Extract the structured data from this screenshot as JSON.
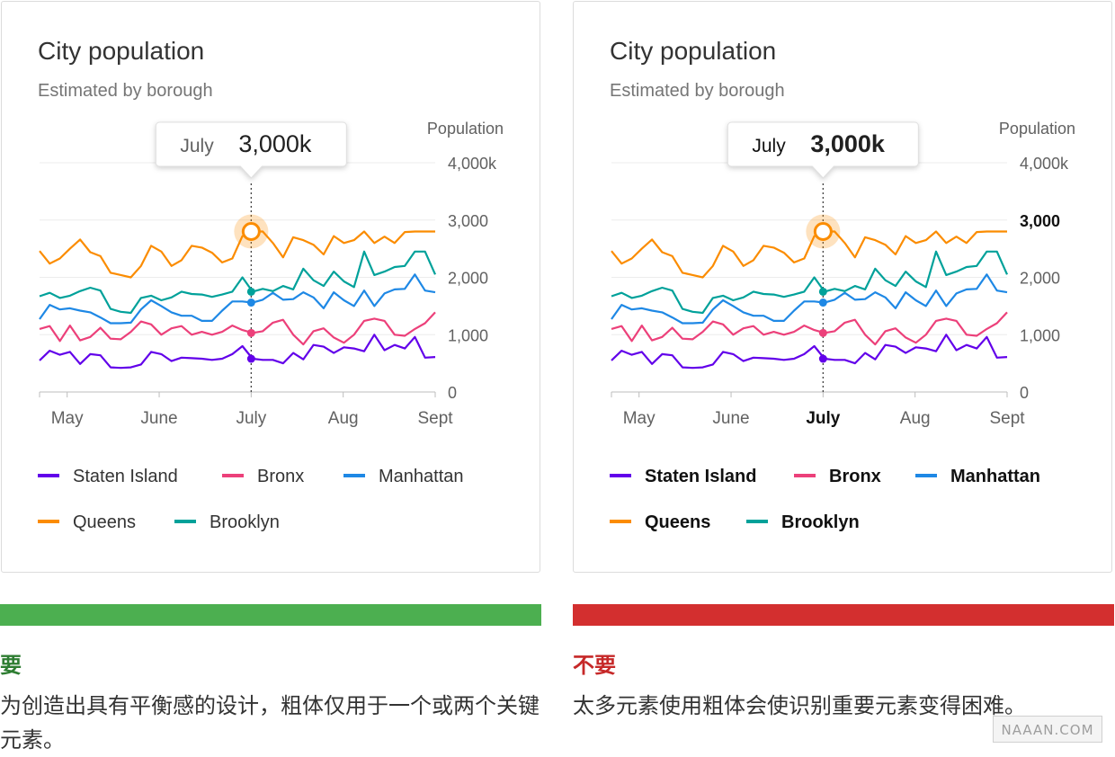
{
  "chart_data": [
    {
      "type": "line",
      "variant": "good",
      "title": "City population",
      "subtitle": "Estimated by borough",
      "ylabel": "Population",
      "ylim": [
        0,
        4000
      ],
      "y_ticks": [
        "4,000k",
        "3,000",
        "2,000",
        "1,000",
        "0"
      ],
      "x_ticks": [
        "May",
        "June",
        "July",
        "Aug",
        "Sept"
      ],
      "x_tick_positions": [
        0,
        1,
        2,
        3,
        4
      ],
      "xlim": [
        -0.3,
        4.0
      ],
      "tooltip": {
        "label": "July",
        "value": "3,000k",
        "at_x": 2.0
      },
      "emphasis": "light",
      "legend": [
        "Staten Island",
        "Bronx",
        "Manhattan",
        "Queens",
        "Brooklyn"
      ]
    },
    {
      "type": "line",
      "variant": "bad",
      "title": "City population",
      "subtitle": "Estimated by borough",
      "ylabel": "Population",
      "ylim": [
        0,
        4000
      ],
      "y_ticks": [
        "4,000k",
        "3,000",
        "2,000",
        "1,000",
        "0"
      ],
      "x_ticks": [
        "May",
        "June",
        "July",
        "Aug",
        "Sept"
      ],
      "x_tick_positions": [
        0,
        1,
        2,
        3,
        4
      ],
      "xlim": [
        -0.3,
        4.0
      ],
      "tooltip": {
        "label": "July",
        "value": "3,000k",
        "at_x": 2.0
      },
      "emphasis": "heavy",
      "legend": [
        "Staten Island",
        "Bronx",
        "Manhattan",
        "Queens",
        "Brooklyn"
      ]
    }
  ],
  "series": [
    {
      "name": "Staten Island",
      "color": "#6200ea",
      "values": [
        550,
        720,
        650,
        700,
        490,
        660,
        640,
        430,
        420,
        430,
        480,
        700,
        660,
        540,
        600,
        590,
        580,
        560,
        580,
        660,
        800,
        580,
        560,
        560,
        500,
        680,
        570,
        820,
        790,
        680,
        780,
        760,
        710,
        1000,
        730,
        820,
        760,
        960,
        600,
        610
      ]
    },
    {
      "name": "Bronx",
      "color": "#ec407a",
      "values": [
        1100,
        1150,
        890,
        1160,
        900,
        960,
        1120,
        930,
        920,
        1050,
        1230,
        1180,
        1000,
        1110,
        1150,
        1000,
        1050,
        1000,
        1050,
        1160,
        1080,
        1030,
        1060,
        1210,
        1260,
        1000,
        830,
        1060,
        1110,
        950,
        860,
        1000,
        1240,
        1280,
        1240,
        1000,
        980,
        1100,
        1200,
        1390
      ]
    },
    {
      "name": "Manhattan",
      "color": "#1e88e5",
      "values": [
        1270,
        1520,
        1440,
        1460,
        1420,
        1390,
        1300,
        1200,
        1200,
        1210,
        1440,
        1600,
        1500,
        1390,
        1330,
        1330,
        1240,
        1240,
        1420,
        1580,
        1580,
        1560,
        1610,
        1730,
        1610,
        1620,
        1740,
        1650,
        1460,
        1740,
        1600,
        1500,
        1770,
        1500,
        1720,
        1790,
        1800,
        2050,
        1770,
        1740
      ]
    },
    {
      "name": "Queens",
      "color": "#fb8c00",
      "values": [
        2460,
        2240,
        2330,
        2500,
        2660,
        2440,
        2370,
        2080,
        2040,
        2000,
        2200,
        2550,
        2450,
        2200,
        2300,
        2550,
        2520,
        2430,
        2260,
        2330,
        2720,
        2800,
        2800,
        2600,
        2350,
        2700,
        2650,
        2570,
        2400,
        2720,
        2600,
        2650,
        2800,
        2600,
        2710,
        2600,
        2790,
        2800,
        2800,
        2800
      ]
    },
    {
      "name": "Brooklyn",
      "color": "#00a19a",
      "values": [
        1670,
        1730,
        1640,
        1680,
        1760,
        1820,
        1770,
        1450,
        1400,
        1380,
        1640,
        1680,
        1600,
        1650,
        1750,
        1710,
        1700,
        1660,
        1700,
        1750,
        2000,
        1750,
        1800,
        1760,
        1850,
        1790,
        2150,
        1950,
        1850,
        2100,
        1930,
        1830,
        2450,
        2040,
        2100,
        2180,
        2200,
        2450,
        2450,
        2050
      ]
    }
  ],
  "captions": {
    "do_label": "要",
    "do_text": "为创造出具有平衡感的设计，粗体仅用于一个或两个关键元素。",
    "dont_label": "不要",
    "dont_text": "太多元素使用粗体会使识别重要元素变得困难。"
  },
  "watermark": "NAAAN.COM"
}
